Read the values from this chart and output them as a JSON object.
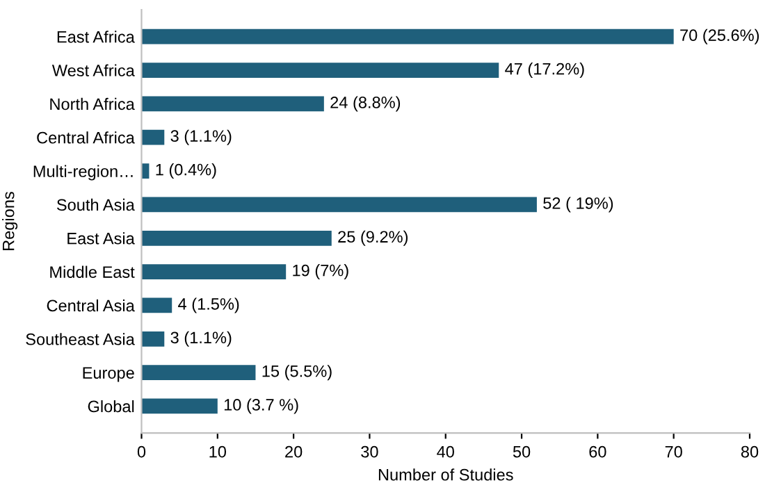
{
  "chart_data": {
    "type": "bar",
    "orientation": "horizontal",
    "xlabel": "Number of Studies",
    "ylabel": "Regions",
    "categories": [
      "East Africa",
      "West Africa",
      "North Africa",
      "Central Africa",
      "Multi-region…",
      "South Asia",
      "East Asia",
      "Middle East",
      "Central Asia",
      "Southeast Asia",
      "Europe",
      "Global"
    ],
    "values": [
      70,
      47,
      24,
      3,
      1,
      52,
      25,
      19,
      4,
      3,
      15,
      10
    ],
    "value_labels": [
      "70 (25.6%)",
      "47 (17.2%)",
      "24 (8.8%)",
      "3 (1.1%)",
      "1 (0.4%)",
      "52 ( 19%)",
      "25 (9.2%)",
      "19 (7%)",
      "4 (1.5%)",
      "3 (1.1%)",
      "15 (5.5%)",
      "10 (3.7 %)"
    ],
    "color": "#1f5f7b",
    "xlim": [
      0,
      80
    ],
    "xticks": [
      0,
      10,
      20,
      30,
      40,
      50,
      60,
      70,
      80
    ],
    "grid": false,
    "legend": false
  }
}
